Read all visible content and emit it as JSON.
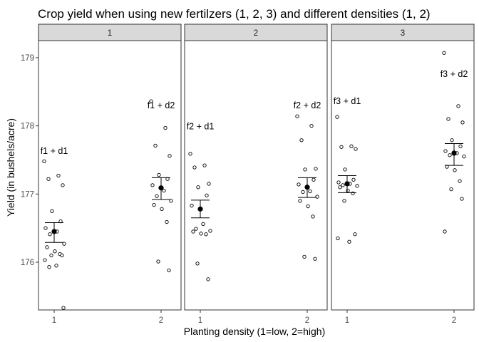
{
  "chart_data": {
    "type": "scatter",
    "title": "Crop yield when using new fertilzers (1, 2, 3) and different densities (1, 2)",
    "xlabel": "Planting density (1=low, 2=high)",
    "ylabel": "Yield (in bushels/acre)",
    "ylim": [
      175.3,
      179.25
    ],
    "yticks": [
      176,
      177,
      178,
      179
    ],
    "xticks": [
      "1",
      "2"
    ],
    "grid": false,
    "legend": "none",
    "colors": {
      "strip_fill": "#d9d9d9",
      "border": "#333333",
      "point": "#000000"
    },
    "panels": [
      {
        "strip": "1",
        "groups": [
          {
            "x": 1,
            "label": "f1 + d1",
            "label_y": 177.63,
            "mean": 176.45,
            "lower": 176.29,
            "upper": 176.58,
            "points": [
              177.48,
              177.27,
              177.22,
              177.13,
              176.75,
              176.6,
              176.5,
              176.45,
              176.41,
              176.27,
              176.22,
              176.16,
              176.12,
              176.1,
              176.1,
              176.03,
              175.95,
              175.93,
              175.33
            ]
          },
          {
            "x": 2,
            "label": "f1 + d2",
            "label_y": 178.3,
            "mean": 177.09,
            "lower": 176.92,
            "upper": 177.24,
            "points": [
              178.36,
              177.97,
              177.71,
              177.56,
              177.28,
              177.22,
              177.13,
              177.05,
              176.97,
              176.9,
              176.84,
              176.78,
              176.59,
              176.01,
              175.88
            ]
          }
        ]
      },
      {
        "strip": "2",
        "groups": [
          {
            "x": 1,
            "label": "f2 + d1",
            "label_y": 177.99,
            "mean": 176.78,
            "lower": 176.65,
            "upper": 176.91,
            "points": [
              177.59,
              177.42,
              177.39,
              177.15,
              177.1,
              176.98,
              176.83,
              176.56,
              176.49,
              176.46,
              176.45,
              176.42,
              176.41,
              175.98,
              175.75
            ]
          },
          {
            "x": 2,
            "label": "f2 + d2",
            "label_y": 178.3,
            "mean": 177.1,
            "lower": 176.95,
            "upper": 177.24,
            "points": [
              178.14,
              178.0,
              177.79,
              177.37,
              177.36,
              177.21,
              177.14,
              177.04,
              177.03,
              176.96,
              176.9,
              176.82,
              176.67,
              176.08,
              176.05
            ]
          }
        ]
      },
      {
        "strip": "3",
        "groups": [
          {
            "x": 1,
            "label": "f3 + d1",
            "label_y": 178.36,
            "mean": 177.15,
            "lower": 177.02,
            "upper": 177.27,
            "points": [
              178.13,
              177.7,
              177.69,
              177.66,
              177.36,
              177.21,
              177.17,
              177.15,
              177.13,
              177.12,
              177.1,
              177.05,
              177.01,
              176.9,
              176.41,
              176.35,
              176.3
            ]
          },
          {
            "x": 2,
            "label": "f3 + d2",
            "label_y": 178.76,
            "mean": 177.6,
            "lower": 177.42,
            "upper": 177.74,
            "points": [
              179.07,
              178.29,
              178.1,
              178.05,
              177.79,
              177.7,
              177.63,
              177.6,
              177.57,
              177.55,
              177.4,
              177.35,
              177.19,
              177.07,
              176.93,
              176.45
            ]
          }
        ]
      }
    ]
  }
}
